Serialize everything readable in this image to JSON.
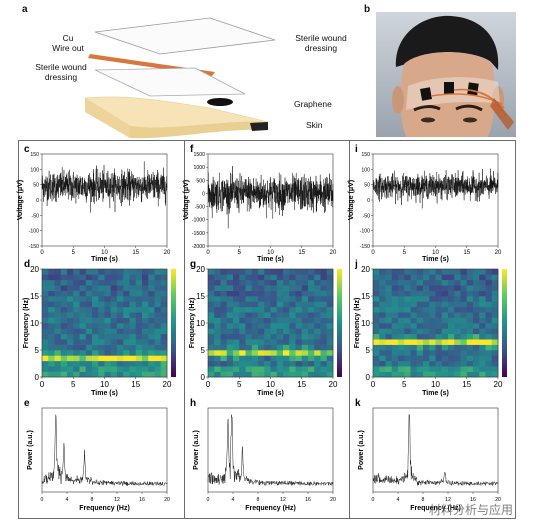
{
  "figure": {
    "panel_labels": [
      "a",
      "b",
      "c",
      "d",
      "e",
      "f",
      "g",
      "h",
      "i",
      "j",
      "k"
    ],
    "schematic": {
      "cu_wire_label": "Cu\nWire out",
      "top_dressing_label": "Sterile wound\ndressing",
      "bottom_dressing_label": "Sterile wound\ndressing",
      "graphene_label": "Graphene",
      "skin_label": "Skin",
      "colors": {
        "wire": "#d9763c",
        "skin": "#f6e4b8",
        "skin_edge": "#e8cf93",
        "graphene": "#111111"
      }
    },
    "photo": {
      "icon": "forehead-electrode-photo"
    },
    "watermark": "材料分析与应用",
    "colormap": [
      "#440154",
      "#3b528b",
      "#21918c",
      "#5ec962",
      "#fde725"
    ]
  },
  "chart_data": [
    {
      "id": "c",
      "type": "line",
      "xlabel": "Time (s)",
      "ylabel": "Voltage (μV)",
      "xlim": [
        0,
        20
      ],
      "ylim": [
        -150,
        150
      ],
      "xticks": [
        0,
        5,
        10,
        15,
        20
      ],
      "yticks": [
        -150,
        -100,
        -50,
        0,
        50,
        100,
        150
      ],
      "signal": {
        "center": 45,
        "amplitude": 45,
        "samples": 900
      }
    },
    {
      "id": "f",
      "type": "line",
      "xlabel": "Time (s)",
      "ylabel": "Voltage (μV)",
      "xlim": [
        0,
        20
      ],
      "ylim": [
        -2000,
        1500
      ],
      "xticks": [
        0,
        5,
        10,
        15,
        20
      ],
      "yticks": [
        -2000,
        -1500,
        -1000,
        -500,
        0,
        500,
        1000,
        1500
      ],
      "signal": {
        "center": 0,
        "amplitude": 600,
        "samples": 900
      }
    },
    {
      "id": "i",
      "type": "line",
      "xlabel": "Time (s)",
      "ylabel": "Voltage (μV)",
      "xlim": [
        0,
        20
      ],
      "ylim": [
        -150,
        150
      ],
      "xticks": [
        0,
        5,
        10,
        15,
        20
      ],
      "yticks": [
        -150,
        -100,
        -50,
        0,
        50,
        100,
        150
      ],
      "signal": {
        "center": 45,
        "amplitude": 35,
        "samples": 900
      }
    },
    {
      "id": "d",
      "type": "heatmap",
      "xlabel": "Time (s)",
      "ylabel": "Frequency (Hz)",
      "xlim": [
        0,
        20
      ],
      "ylim": [
        0,
        20
      ],
      "xticks": [
        0,
        5,
        10,
        15,
        20
      ],
      "yticks": [
        0,
        5,
        10,
        15,
        20
      ],
      "cols": 20,
      "rows": 20,
      "band_row": 3,
      "band_strength": 0.75
    },
    {
      "id": "g",
      "type": "heatmap",
      "xlabel": "Time (s)",
      "ylabel": "Frequency (Hz)",
      "xlim": [
        0,
        20
      ],
      "ylim": [
        0,
        20
      ],
      "xticks": [
        0,
        5,
        10,
        15,
        20
      ],
      "yticks": [
        0,
        5,
        10,
        15,
        20
      ],
      "cols": 20,
      "rows": 20,
      "band_row": 4,
      "band_strength": 0.6
    },
    {
      "id": "j",
      "type": "heatmap",
      "xlabel": "Time (s)",
      "ylabel": "Frequency (Hz)",
      "xlim": [
        0,
        20
      ],
      "ylim": [
        0,
        20
      ],
      "xticks": [
        0,
        5,
        10,
        15,
        20
      ],
      "yticks": [
        0,
        5,
        10,
        15,
        20
      ],
      "cols": 20,
      "rows": 20,
      "band_row": 6,
      "band_strength": 0.9
    },
    {
      "id": "e",
      "type": "line",
      "xlabel": "Frequency (Hz)",
      "ylabel": "Power (a.u.)",
      "xlim": [
        0,
        20
      ],
      "xticks": [
        0,
        4,
        8,
        12,
        16,
        20
      ],
      "peaks": [
        {
          "x": 2.2,
          "h": 0.95
        },
        {
          "x": 3.5,
          "h": 0.45
        },
        {
          "x": 6.8,
          "h": 0.35
        }
      ]
    },
    {
      "id": "h",
      "type": "line",
      "xlabel": "Frequency (Hz)",
      "ylabel": "Power (a.u.)",
      "xlim": [
        0,
        20
      ],
      "xticks": [
        0,
        4,
        8,
        12,
        16,
        20
      ],
      "peaks": [
        {
          "x": 3.8,
          "h": 0.95
        },
        {
          "x": 3.2,
          "h": 0.7
        },
        {
          "x": 5.5,
          "h": 0.45
        }
      ]
    },
    {
      "id": "k",
      "type": "line",
      "xlabel": "Frequency (Hz)",
      "ylabel": "Power (a.u.)",
      "xlim": [
        0,
        20
      ],
      "xticks": [
        0,
        4,
        8,
        12,
        16,
        20
      ],
      "peaks": [
        {
          "x": 5.8,
          "h": 1.0
        },
        {
          "x": 11.5,
          "h": 0.15
        }
      ]
    }
  ]
}
